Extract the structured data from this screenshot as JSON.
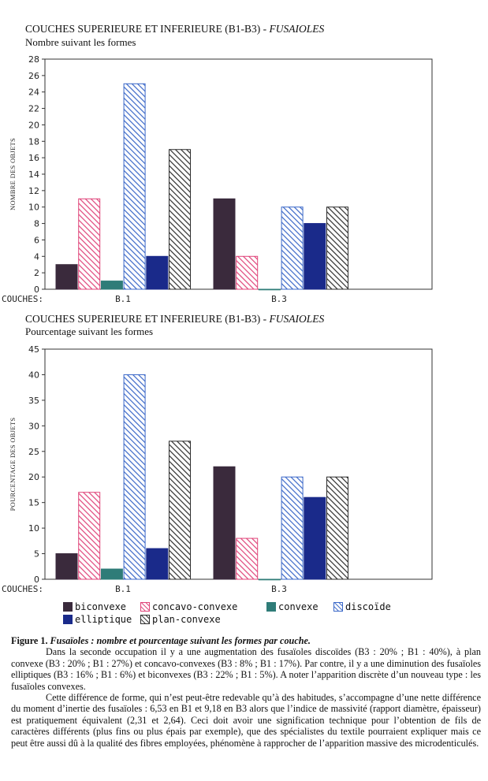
{
  "colors": {
    "biconvexe": "#3a2a3c",
    "concavo-convexe": "#e0457a",
    "convexe": "#2f7c78",
    "discoide": "#3b68c8",
    "elliptique": "#1a2a8a",
    "plan-convexe": "#2d2d2d"
  },
  "chart_data": [
    {
      "type": "bar",
      "title_main": "COUCHES SUPERIEURE ET INFERIEURE (B1-B3) -",
      "title_italic": "FUSAIOLES",
      "subtitle": "Nombre suivant les formes",
      "ylabel": "NOMBRE DES OBJETS",
      "xlabel": "COUCHES:",
      "categories": [
        "B.1",
        "B.3"
      ],
      "ylim": [
        0,
        28
      ],
      "yticks": [
        "0",
        "2",
        "4",
        "6",
        "8",
        "10",
        "12",
        "14",
        "16",
        "18",
        "20",
        "22",
        "24",
        "26",
        "28"
      ],
      "series": [
        {
          "name": "biconvexe",
          "values": [
            3,
            11
          ]
        },
        {
          "name": "concavo-convexe",
          "values": [
            11,
            4
          ]
        },
        {
          "name": "convexe",
          "values": [
            1,
            0
          ]
        },
        {
          "name": "discoide",
          "values": [
            25,
            10
          ]
        },
        {
          "name": "elliptique",
          "values": [
            4,
            8
          ]
        },
        {
          "name": "plan-convexe",
          "values": [
            17,
            10
          ]
        }
      ]
    },
    {
      "type": "bar",
      "title_main": "COUCHES SUPERIEURE ET INFERIEURE (B1-B3) -",
      "title_italic": "FUSAIOLES",
      "subtitle": "Pourcentage suivant les formes",
      "ylabel": "POURCENTAGE DES OBJETS",
      "xlabel": "COUCHES:",
      "categories": [
        "B.1",
        "B.3"
      ],
      "ylim": [
        0,
        45
      ],
      "yticks": [
        "0",
        "5",
        "10",
        "15",
        "20",
        "25",
        "30",
        "35",
        "40",
        "45"
      ],
      "series": [
        {
          "name": "biconvexe",
          "values": [
            5,
            22
          ]
        },
        {
          "name": "concavo-convexe",
          "values": [
            17,
            8
          ]
        },
        {
          "name": "convexe",
          "values": [
            2,
            0
          ]
        },
        {
          "name": "discoide",
          "values": [
            40,
            20
          ]
        },
        {
          "name": "elliptique",
          "values": [
            6,
            16
          ]
        },
        {
          "name": "plan-convexe",
          "values": [
            27,
            20
          ]
        }
      ]
    }
  ],
  "legend": {
    "items": [
      {
        "key": "biconvexe",
        "label": "biconvexe"
      },
      {
        "key": "concavo-convexe",
        "label": "concavo-convexe"
      },
      {
        "key": "convexe",
        "label": "convexe"
      },
      {
        "key": "discoide",
        "label": "discoïde"
      },
      {
        "key": "elliptique",
        "label": "elliptique"
      },
      {
        "key": "plan-convexe",
        "label": "plan-convexe"
      }
    ]
  },
  "caption": {
    "fig_label": "Figure 1.",
    "fig_title": "Fusaïoles : nombre et pourcentage suivant les formes par couche.",
    "paragraph1": "Dans la seconde occupation il y a une augmentation des fusaïoles discoïdes (B3 : 20% ; B1 : 40%), à plan convexe (B3 : 20% ; B1 : 27%) et concavo-convexes (B3 : 8% ; B1 : 17%). Par contre, il y a une diminution des fusaïoles elliptiques (B3 : 16% ; B1 : 6%) et biconvexes (B3 : 22% ; B1 : 5%). A noter l’apparition discrète d’un nouveau type : les fusaïoles convexes.",
    "paragraph2": "Cette différence de forme, qui n’est peut-être redevable qu’à des habitudes, s’accompagne d’une nette différence du moment d’inertie des fusaïoles : 6,53 en B1 et 9,18 en B3 alors que l’indice de massivité (rapport diamètre, épaisseur) est pratiquement équivalent (2,31 et 2,64). Ceci doit avoir une signification technique pour l’obtention de fils de caractères différents (plus fins ou plus épais par exemple), que des spécialistes du textile pourraient expliquer mais ce peut être aussi dû à la qualité des fibres employées, phénomène à rapprocher de l’apparition massive des microdenticulés."
  }
}
